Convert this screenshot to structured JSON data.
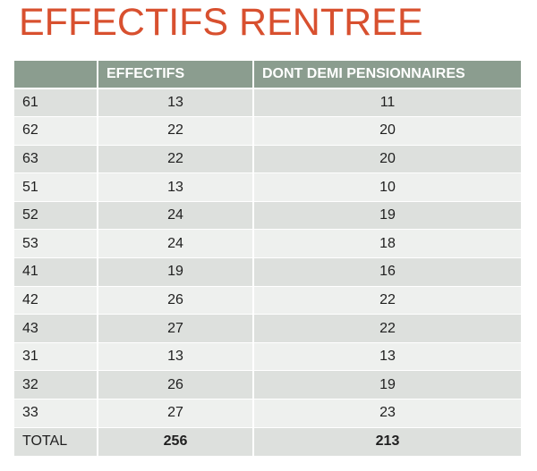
{
  "slide": {
    "title": "EFFECTIFS RENTREE"
  },
  "table": {
    "headers": [
      "",
      "EFFECTIFS",
      "DONT DEMI PENSIONNAIRES"
    ],
    "rows": [
      {
        "label": "61",
        "effectifs": "13",
        "demi": "11"
      },
      {
        "label": "62",
        "effectifs": "22",
        "demi": "20"
      },
      {
        "label": "63",
        "effectifs": "22",
        "demi": "20"
      },
      {
        "label": "51",
        "effectifs": "13",
        "demi": "10"
      },
      {
        "label": "52",
        "effectifs": "24",
        "demi": "19"
      },
      {
        "label": "53",
        "effectifs": "24",
        "demi": "18"
      },
      {
        "label": "41",
        "effectifs": "19",
        "demi": "16"
      },
      {
        "label": "42",
        "effectifs": "26",
        "demi": "22"
      },
      {
        "label": "43",
        "effectifs": "27",
        "demi": "22"
      },
      {
        "label": "31",
        "effectifs": "13",
        "demi": "13"
      },
      {
        "label": "32",
        "effectifs": "26",
        "demi": "19"
      },
      {
        "label": "33",
        "effectifs": "27",
        "demi": "23"
      }
    ],
    "total": {
      "label": "TOTAL",
      "effectifs": "256",
      "demi": "213"
    }
  },
  "colors": {
    "title": "#d8502f",
    "header_bg": "#8b9d8f",
    "row_dark": "#dde0dd",
    "row_light": "#eef0ee"
  }
}
